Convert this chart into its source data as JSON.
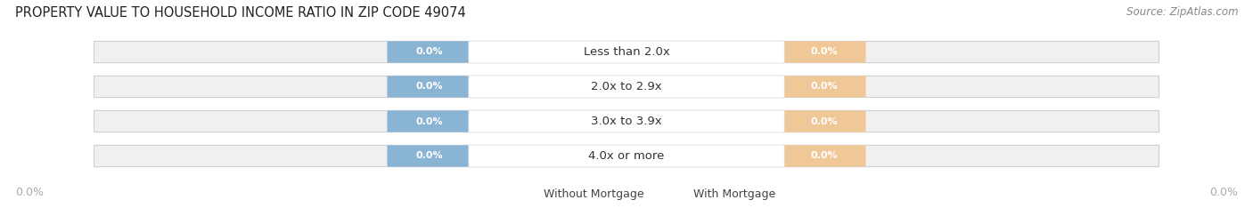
{
  "title": "PROPERTY VALUE TO HOUSEHOLD INCOME RATIO IN ZIP CODE 49074",
  "source": "Source: ZipAtlas.com",
  "categories": [
    "Less than 2.0x",
    "2.0x to 2.9x",
    "3.0x to 3.9x",
    "4.0x or more"
  ],
  "without_mortgage": [
    0.0,
    0.0,
    0.0,
    0.0
  ],
  "with_mortgage": [
    0.0,
    0.0,
    0.0,
    0.0
  ],
  "bar_color_left": "#8ab4d4",
  "bar_color_right": "#f0c898",
  "bar_bg_color": "#f0f0f0",
  "bar_border_color": "#d0d0d0",
  "title_fontsize": 10.5,
  "source_fontsize": 8.5,
  "tick_label_fontsize": 9,
  "legend_fontsize": 9,
  "axis_label_color": "#aaaaaa",
  "background_color": "#ffffff",
  "x_axis_label": "0.0%",
  "legend_without": "Without Mortgage",
  "legend_with": "With Mortgage"
}
